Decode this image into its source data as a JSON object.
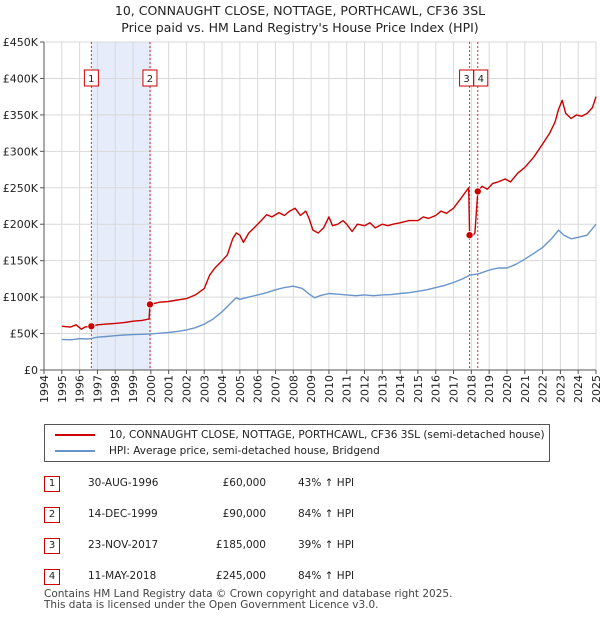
{
  "title": {
    "line1": "10, CONNAUGHT CLOSE, NOTTAGE, PORTHCAWL, CF36 3SL",
    "line2": "Price paid vs. HM Land Registry's House Price Index (HPI)"
  },
  "colors": {
    "price_line": "#cc0000",
    "hpi_line": "#6a95c9",
    "shade": "#e6ecfa",
    "grid": "#d9d9d9",
    "marker_border": "#cc0000"
  },
  "legend": {
    "items": [
      {
        "label": "10, CONNAUGHT CLOSE, NOTTAGE, PORTHCAWL, CF36 3SL (semi-detached house)",
        "color": "#cc0000"
      },
      {
        "label": "HPI: Average price, semi-detached house, Bridgend",
        "color": "#6a95c9"
      }
    ]
  },
  "sales": [
    {
      "num": "1",
      "date": "30-AUG-1996",
      "price": "£60,000",
      "hpi": "43% ↑ HPI"
    },
    {
      "num": "2",
      "date": "14-DEC-1999",
      "price": "£90,000",
      "hpi": "84% ↑ HPI"
    },
    {
      "num": "3",
      "date": "23-NOV-2017",
      "price": "£185,000",
      "hpi": "39% ↑ HPI"
    },
    {
      "num": "4",
      "date": "11-MAY-2018",
      "price": "£245,000",
      "hpi": "84% ↑ HPI"
    }
  ],
  "footer": {
    "line1": "Contains HM Land Registry data © Crown copyright and database right 2025.",
    "line2": "This data is licensed under the Open Government Licence v3.0."
  },
  "chart_data": {
    "type": "line",
    "title": "Price paid vs. HM Land Registry's House Price Index (HPI)",
    "xlabel": "",
    "ylabel": "",
    "xlim": [
      1994,
      2025
    ],
    "ylim": [
      0,
      450000
    ],
    "x_ticks": [
      "1994",
      "1995",
      "1996",
      "1997",
      "1998",
      "1999",
      "2000",
      "2001",
      "2002",
      "2003",
      "2004",
      "2005",
      "2006",
      "2007",
      "2008",
      "2009",
      "2010",
      "2011",
      "2012",
      "2013",
      "2014",
      "2015",
      "2016",
      "2017",
      "2018",
      "2019",
      "2020",
      "2021",
      "2022",
      "2023",
      "2024",
      "2025"
    ],
    "y_ticks": [
      {
        "value": 0,
        "label": "£0"
      },
      {
        "value": 50000,
        "label": "£50K"
      },
      {
        "value": 100000,
        "label": "£100K"
      },
      {
        "value": 150000,
        "label": "£150K"
      },
      {
        "value": 200000,
        "label": "£200K"
      },
      {
        "value": 250000,
        "label": "£250K"
      },
      {
        "value": 300000,
        "label": "£300K"
      },
      {
        "value": 350000,
        "label": "£350K"
      },
      {
        "value": 400000,
        "label": "£400K"
      },
      {
        "value": 450000,
        "label": "£450K"
      }
    ],
    "grid": true,
    "shaded_spans": [
      [
        1996.66,
        1999.95
      ]
    ],
    "sale_markers": [
      {
        "label": "1",
        "x": 1996.66,
        "y": 60000
      },
      {
        "label": "2",
        "x": 1999.95,
        "y": 90000
      },
      {
        "label": "3",
        "x": 2017.9,
        "y": 185000
      },
      {
        "label": "4",
        "x": 2018.36,
        "y": 245000
      }
    ],
    "series": [
      {
        "name": "10, CONNAUGHT CLOSE, NOTTAGE, PORTHCAWL, CF36 3SL (semi-detached house)",
        "points": [
          [
            1995.0,
            60000
          ],
          [
            1995.5,
            59000
          ],
          [
            1995.8,
            62000
          ],
          [
            1996.1,
            56000
          ],
          [
            1996.3,
            59000
          ],
          [
            1996.66,
            60000
          ],
          [
            1997.0,
            62000
          ],
          [
            1997.5,
            63000
          ],
          [
            1998.0,
            64000
          ],
          [
            1998.5,
            65000
          ],
          [
            1999.0,
            67000
          ],
          [
            1999.5,
            68000
          ],
          [
            1999.9,
            70000
          ],
          [
            1999.95,
            90000
          ],
          [
            2000.5,
            93000
          ],
          [
            2001.0,
            94000
          ],
          [
            2001.5,
            96000
          ],
          [
            2002.0,
            98000
          ],
          [
            2002.5,
            103000
          ],
          [
            2003.0,
            112000
          ],
          [
            2003.3,
            130000
          ],
          [
            2003.6,
            140000
          ],
          [
            2004.0,
            150000
          ],
          [
            2004.3,
            158000
          ],
          [
            2004.6,
            180000
          ],
          [
            2004.8,
            188000
          ],
          [
            2005.0,
            185000
          ],
          [
            2005.2,
            175000
          ],
          [
            2005.5,
            188000
          ],
          [
            2005.8,
            195000
          ],
          [
            2006.2,
            205000
          ],
          [
            2006.5,
            213000
          ],
          [
            2006.8,
            210000
          ],
          [
            2007.2,
            216000
          ],
          [
            2007.5,
            212000
          ],
          [
            2007.8,
            218000
          ],
          [
            2008.1,
            222000
          ],
          [
            2008.4,
            212000
          ],
          [
            2008.7,
            218000
          ],
          [
            2008.9,
            207000
          ],
          [
            2009.1,
            192000
          ],
          [
            2009.4,
            188000
          ],
          [
            2009.7,
            195000
          ],
          [
            2010.0,
            210000
          ],
          [
            2010.2,
            198000
          ],
          [
            2010.5,
            200000
          ],
          [
            2010.8,
            205000
          ],
          [
            2011.0,
            200000
          ],
          [
            2011.3,
            190000
          ],
          [
            2011.6,
            200000
          ],
          [
            2012.0,
            198000
          ],
          [
            2012.3,
            202000
          ],
          [
            2012.6,
            195000
          ],
          [
            2013.0,
            200000
          ],
          [
            2013.3,
            198000
          ],
          [
            2013.6,
            200000
          ],
          [
            2014.0,
            202000
          ],
          [
            2014.5,
            205000
          ],
          [
            2015.0,
            205000
          ],
          [
            2015.3,
            210000
          ],
          [
            2015.6,
            208000
          ],
          [
            2016.0,
            212000
          ],
          [
            2016.3,
            218000
          ],
          [
            2016.6,
            215000
          ],
          [
            2017.0,
            222000
          ],
          [
            2017.4,
            235000
          ],
          [
            2017.7,
            245000
          ],
          [
            2017.85,
            250000
          ],
          [
            2017.9,
            185000
          ],
          [
            2018.0,
            182000
          ],
          [
            2018.2,
            188000
          ],
          [
            2018.36,
            245000
          ],
          [
            2018.6,
            252000
          ],
          [
            2018.9,
            248000
          ],
          [
            2019.2,
            256000
          ],
          [
            2019.5,
            258000
          ],
          [
            2019.9,
            262000
          ],
          [
            2020.2,
            258000
          ],
          [
            2020.6,
            270000
          ],
          [
            2021.0,
            278000
          ],
          [
            2021.5,
            292000
          ],
          [
            2022.0,
            310000
          ],
          [
            2022.4,
            325000
          ],
          [
            2022.7,
            340000
          ],
          [
            2022.9,
            358000
          ],
          [
            2023.1,
            370000
          ],
          [
            2023.3,
            352000
          ],
          [
            2023.6,
            345000
          ],
          [
            2023.9,
            350000
          ],
          [
            2024.2,
            348000
          ],
          [
            2024.5,
            352000
          ],
          [
            2024.8,
            360000
          ],
          [
            2025.0,
            375000
          ]
        ]
      },
      {
        "name": "HPI: Average price, semi-detached house, Bridgend",
        "points": [
          [
            1995.0,
            42000
          ],
          [
            1995.5,
            41500
          ],
          [
            1996.0,
            43000
          ],
          [
            1996.5,
            42500
          ],
          [
            1997.0,
            45000
          ],
          [
            1997.5,
            46000
          ],
          [
            1998.0,
            47000
          ],
          [
            1998.5,
            48000
          ],
          [
            1999.0,
            48500
          ],
          [
            1999.5,
            49000
          ],
          [
            2000.0,
            49500
          ],
          [
            2000.5,
            50500
          ],
          [
            2001.0,
            51500
          ],
          [
            2001.5,
            53000
          ],
          [
            2002.0,
            55000
          ],
          [
            2002.5,
            58000
          ],
          [
            2003.0,
            63000
          ],
          [
            2003.5,
            70000
          ],
          [
            2004.0,
            80000
          ],
          [
            2004.5,
            92000
          ],
          [
            2004.8,
            99000
          ],
          [
            2005.0,
            97000
          ],
          [
            2005.5,
            100000
          ],
          [
            2006.0,
            103000
          ],
          [
            2006.5,
            106000
          ],
          [
            2007.0,
            110000
          ],
          [
            2007.5,
            113000
          ],
          [
            2008.0,
            115000
          ],
          [
            2008.5,
            112000
          ],
          [
            2008.9,
            104000
          ],
          [
            2009.2,
            99000
          ],
          [
            2009.5,
            102000
          ],
          [
            2010.0,
            105000
          ],
          [
            2010.5,
            104000
          ],
          [
            2011.0,
            103000
          ],
          [
            2011.5,
            102000
          ],
          [
            2012.0,
            103000
          ],
          [
            2012.5,
            102000
          ],
          [
            2013.0,
            103000
          ],
          [
            2013.5,
            103500
          ],
          [
            2014.0,
            105000
          ],
          [
            2014.5,
            106000
          ],
          [
            2015.0,
            108000
          ],
          [
            2015.5,
            110000
          ],
          [
            2016.0,
            113000
          ],
          [
            2016.5,
            116000
          ],
          [
            2017.0,
            120000
          ],
          [
            2017.5,
            125000
          ],
          [
            2017.9,
            130000
          ],
          [
            2018.4,
            132000
          ],
          [
            2019.0,
            137000
          ],
          [
            2019.5,
            140000
          ],
          [
            2020.0,
            140000
          ],
          [
            2020.5,
            145000
          ],
          [
            2021.0,
            152000
          ],
          [
            2021.5,
            160000
          ],
          [
            2022.0,
            168000
          ],
          [
            2022.5,
            180000
          ],
          [
            2022.9,
            192000
          ],
          [
            2023.2,
            185000
          ],
          [
            2023.6,
            180000
          ],
          [
            2024.0,
            182000
          ],
          [
            2024.5,
            185000
          ],
          [
            2025.0,
            200000
          ]
        ]
      }
    ]
  }
}
